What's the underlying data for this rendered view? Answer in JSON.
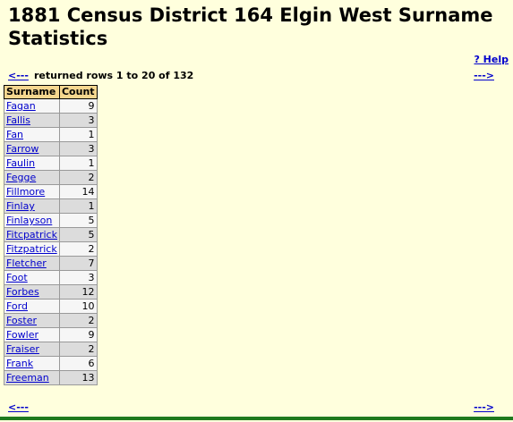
{
  "page": {
    "title": "1881 Census District 164 Elgin West Surname Statistics",
    "help_label": "? Help"
  },
  "nav": {
    "prev_label": "<---",
    "next_label": "--->",
    "rows_text": "returned rows 1 to 20 of 132"
  },
  "table": {
    "headers": [
      "Surname",
      "Count"
    ],
    "rows": [
      {
        "surname": "Fagan",
        "count": "9"
      },
      {
        "surname": "Fallis",
        "count": "3"
      },
      {
        "surname": "Fan",
        "count": "1"
      },
      {
        "surname": "Farrow",
        "count": "3"
      },
      {
        "surname": "Faulin",
        "count": "1"
      },
      {
        "surname": "Fegge",
        "count": "2"
      },
      {
        "surname": "Fillmore",
        "count": "14"
      },
      {
        "surname": "Finlay",
        "count": "1"
      },
      {
        "surname": "Finlayson",
        "count": "5"
      },
      {
        "surname": "Fitcpatrick",
        "count": "5"
      },
      {
        "surname": "Fitzpatrick",
        "count": "2"
      },
      {
        "surname": "Fletcher",
        "count": "7"
      },
      {
        "surname": "Foot",
        "count": "3"
      },
      {
        "surname": "Forbes",
        "count": "12"
      },
      {
        "surname": "Ford",
        "count": "10"
      },
      {
        "surname": "Foster",
        "count": "2"
      },
      {
        "surname": "Fowler",
        "count": "9"
      },
      {
        "surname": "Fraiser",
        "count": "2"
      },
      {
        "surname": "Frank",
        "count": "6"
      },
      {
        "surname": "Freeman",
        "count": "13"
      }
    ]
  }
}
